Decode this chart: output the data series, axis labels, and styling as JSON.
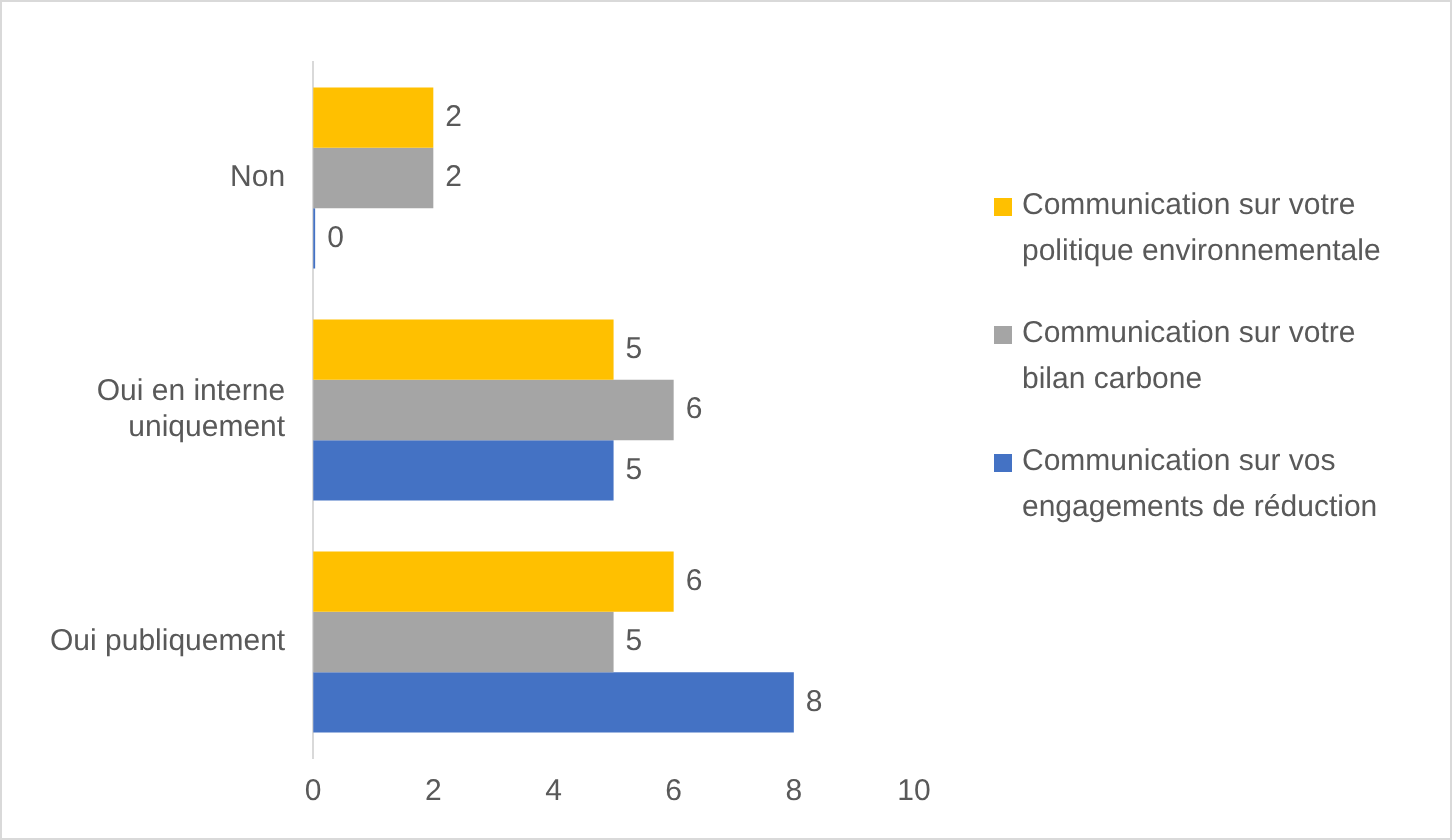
{
  "chart_data": {
    "type": "bar",
    "orientation": "horizontal",
    "categories": [
      "Non",
      "Oui en interne uniquement",
      "Oui publiquement"
    ],
    "series": [
      {
        "name": "Communication sur votre politique environnementale",
        "color": "#ffc000",
        "values": [
          2,
          5,
          6
        ]
      },
      {
        "name": "Communication sur votre bilan carbone",
        "color": "#a5a5a5",
        "values": [
          2,
          6,
          5
        ]
      },
      {
        "name": "Communication sur vos engagements de réduction",
        "color": "#4472c4",
        "values": [
          0,
          5,
          8
        ]
      }
    ],
    "xlim": [
      0,
      10
    ],
    "xticks": [
      0,
      2,
      4,
      6,
      8,
      10
    ],
    "grid": false,
    "legend": "right",
    "data_labels": true
  }
}
